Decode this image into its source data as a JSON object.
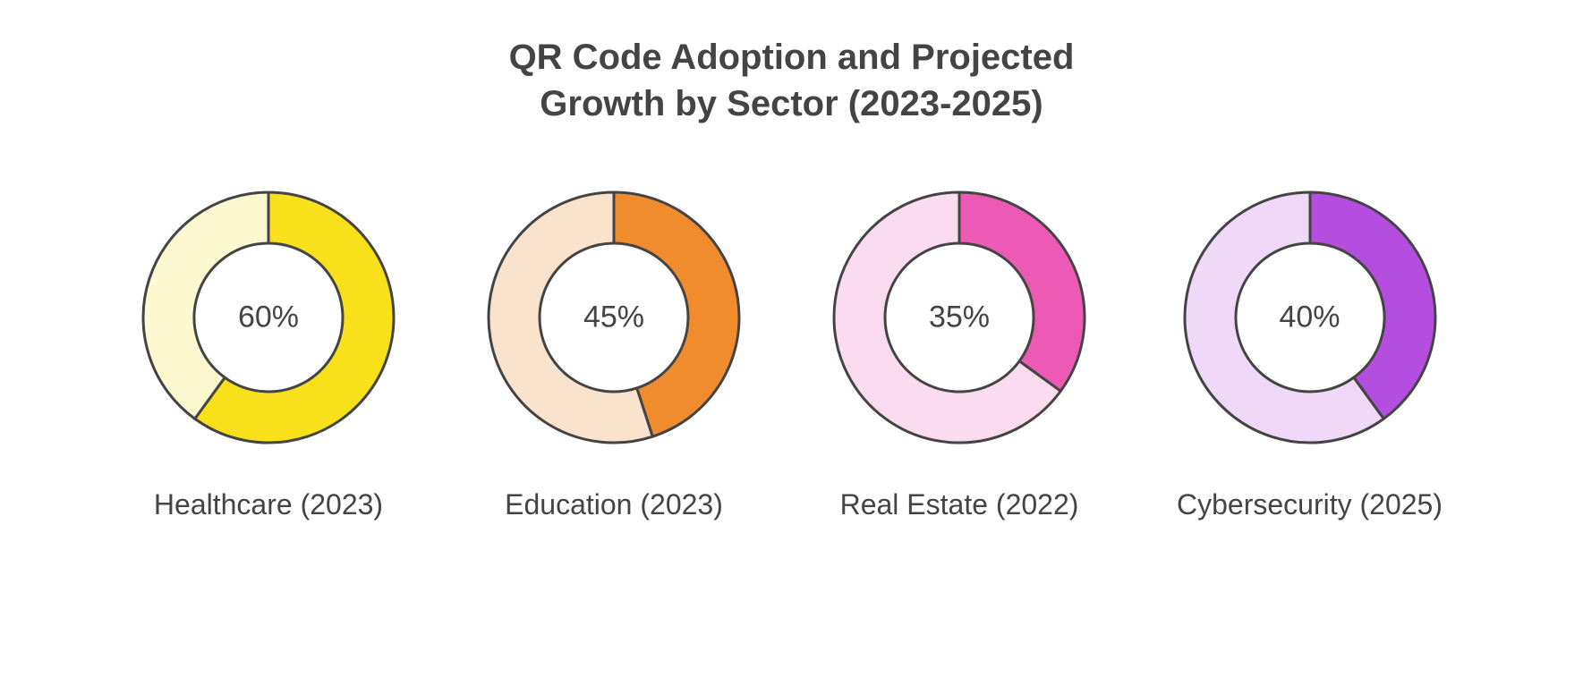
{
  "title_line1": "QR Code Adoption and Projected",
  "title_line2": "Growth by Sector (2023-2025)",
  "title_fontsize": 40,
  "title_color": "#444444",
  "background_color": "#ffffff",
  "stroke_color": "#444444",
  "stroke_width": 3,
  "donut_outer_radius": 140,
  "donut_inner_radius": 83,
  "center_fontsize": 34,
  "label_fontsize": 32,
  "chart_gap": 100,
  "charts": [
    {
      "id": "healthcare",
      "label": "Healthcare (2023)",
      "percent": 60,
      "center_text": "60%",
      "filled_color": "#f8e01a",
      "empty_color": "#fcf8d0"
    },
    {
      "id": "education",
      "label": "Education (2023)",
      "percent": 45,
      "center_text": "45%",
      "filled_color": "#f08c2e",
      "empty_color": "#fae3cd"
    },
    {
      "id": "realestate",
      "label": "Real Estate (2022)",
      "percent": 35,
      "center_text": "35%",
      "filled_color": "#ed5ab6",
      "empty_color": "#fbdbef"
    },
    {
      "id": "cybersecurity",
      "label": "Cybersecurity (2025)",
      "percent": 40,
      "center_text": "40%",
      "filled_color": "#b54de0",
      "empty_color": "#f0d9f8"
    }
  ]
}
